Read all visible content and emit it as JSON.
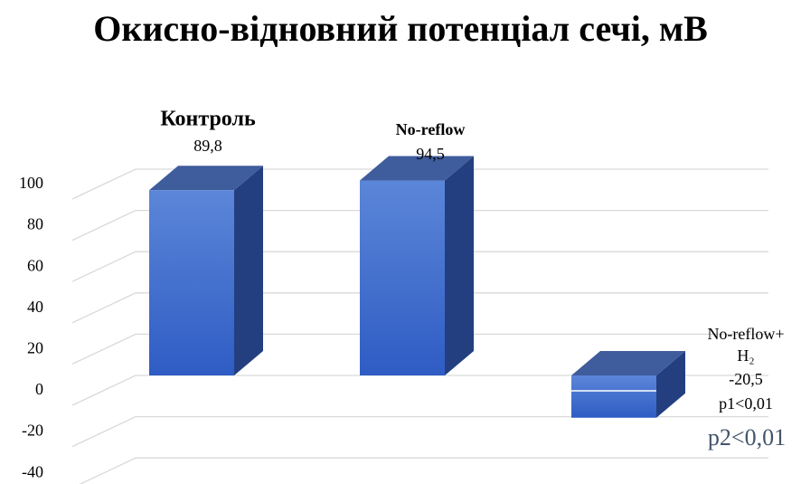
{
  "chart_data": {
    "type": "bar3d",
    "title": "Окисно-відновний потенціал сечі, мВ",
    "categories": [
      "Контроль",
      "No-reflow",
      "No-reflow+\nH₂"
    ],
    "values": [
      89.8,
      94.5,
      -20.5
    ],
    "value_labels": [
      "89,8",
      "94,5",
      "-20,5"
    ],
    "annotations": [
      "p1<0,01",
      "p2<0,01"
    ],
    "color": "#3a68cc",
    "ylim": [
      -40,
      100
    ],
    "yticks": [
      -40,
      -20,
      0,
      20,
      40,
      60,
      80,
      100
    ],
    "grid": true
  }
}
